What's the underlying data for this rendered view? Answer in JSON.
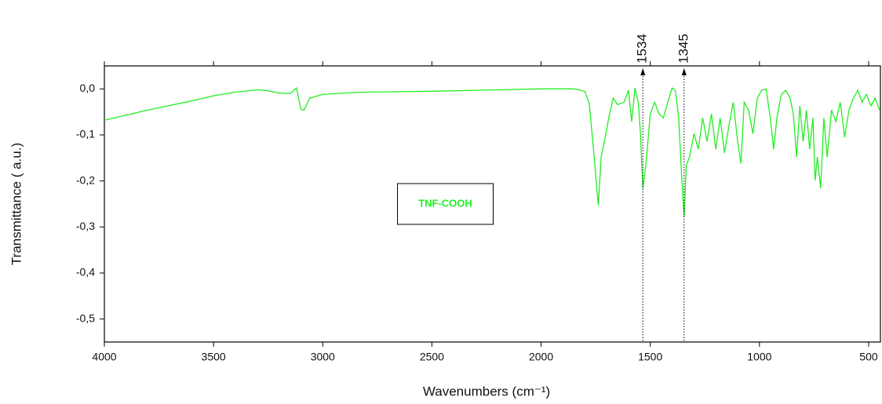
{
  "chart_data": {
    "type": "line",
    "xlabel": "Wavenumbers (cm⁻¹)",
    "ylabel": "Transmittance ( a.u.)",
    "x": [
      4000,
      3800,
      3600,
      3500,
      3400,
      3300,
      3250,
      3200,
      3150,
      3120,
      3100,
      3085,
      3060,
      3000,
      2900,
      2800,
      2500,
      2200,
      2000,
      1850,
      1800,
      1780,
      1760,
      1745,
      1738,
      1725,
      1710,
      1690,
      1670,
      1650,
      1620,
      1600,
      1585,
      1570,
      1555,
      1545,
      1534,
      1520,
      1500,
      1480,
      1460,
      1440,
      1420,
      1400,
      1385,
      1370,
      1355,
      1345,
      1335,
      1320,
      1300,
      1280,
      1260,
      1240,
      1220,
      1200,
      1180,
      1160,
      1140,
      1120,
      1100,
      1085,
      1070,
      1050,
      1030,
      1010,
      990,
      970,
      950,
      935,
      920,
      900,
      880,
      860,
      845,
      830,
      815,
      800,
      785,
      770,
      755,
      745,
      735,
      720,
      705,
      690,
      670,
      650,
      630,
      610,
      590,
      570,
      550,
      530,
      510,
      490,
      470,
      450
    ],
    "series": [
      {
        "name": "TNF-COOH",
        "color": "#22ee22",
        "values": [
          -0.068,
          -0.046,
          -0.026,
          -0.015,
          -0.007,
          -0.002,
          -0.004,
          -0.009,
          -0.01,
          0.002,
          -0.045,
          -0.046,
          -0.02,
          -0.012,
          -0.009,
          -0.007,
          -0.005,
          -0.002,
          0,
          0,
          -0.005,
          -0.03,
          -0.13,
          -0.215,
          -0.253,
          -0.148,
          -0.114,
          -0.063,
          -0.02,
          -0.034,
          -0.029,
          -0.003,
          -0.071,
          0.002,
          -0.029,
          -0.097,
          -0.216,
          -0.165,
          -0.054,
          -0.029,
          -0.054,
          -0.063,
          -0.029,
          0.002,
          -0.003,
          -0.063,
          -0.199,
          -0.279,
          -0.165,
          -0.148,
          -0.097,
          -0.131,
          -0.063,
          -0.114,
          -0.054,
          -0.131,
          -0.063,
          -0.139,
          -0.08,
          -0.029,
          -0.114,
          -0.162,
          -0.029,
          -0.046,
          -0.097,
          -0.02,
          -0.003,
          0,
          -0.063,
          -0.131,
          -0.063,
          -0.012,
          -0.003,
          -0.02,
          -0.054,
          -0.148,
          -0.037,
          -0.114,
          -0.046,
          -0.131,
          -0.063,
          -0.199,
          -0.148,
          -0.216,
          -0.063,
          -0.148,
          -0.046,
          -0.071,
          -0.029,
          -0.105,
          -0.046,
          -0.02,
          -0.003,
          -0.029,
          -0.012,
          -0.037,
          -0.02,
          -0.046
        ]
      }
    ],
    "xlim": [
      4000,
      446
    ],
    "xticks": [
      4000,
      3500,
      3000,
      2500,
      2000,
      1500,
      1000,
      500
    ],
    "ylim": [
      -0.55,
      0.05
    ],
    "yticks": [
      {
        "value": 0,
        "label": "0,0"
      },
      {
        "value": -0.1,
        "label": "-0,1"
      },
      {
        "value": -0.2,
        "label": "-0,2"
      },
      {
        "value": -0.3,
        "label": "-0,3"
      },
      {
        "value": -0.4,
        "label": "-0,4"
      },
      {
        "value": -0.5,
        "label": "-0,5"
      }
    ],
    "annotations": [
      1534,
      1345
    ],
    "legend": "center"
  }
}
